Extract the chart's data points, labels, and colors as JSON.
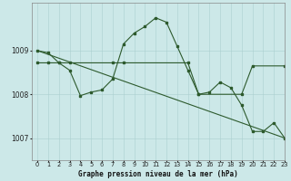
{
  "title": "Graphe pression niveau de la mer (hPa)",
  "background_color": "#cce8e8",
  "grid_color": "#aacfcf",
  "line_color": "#2d5a2d",
  "xlim": [
    -0.5,
    23
  ],
  "ylim": [
    1006.5,
    1010.1
  ],
  "yticks": [
    1007,
    1008,
    1009
  ],
  "xticks": [
    0,
    1,
    2,
    3,
    4,
    5,
    6,
    7,
    8,
    9,
    10,
    11,
    12,
    13,
    14,
    15,
    16,
    17,
    18,
    19,
    20,
    21,
    22,
    23
  ],
  "line1_x": [
    0,
    1,
    2,
    3,
    4,
    5,
    6,
    7,
    8,
    9,
    10,
    11,
    12,
    13,
    14,
    15,
    16,
    17,
    18,
    19,
    20,
    21,
    22,
    23
  ],
  "line1_y": [
    1009.0,
    1008.95,
    1008.72,
    1008.55,
    1007.97,
    1008.05,
    1008.1,
    1008.35,
    1009.15,
    1009.4,
    1009.55,
    1009.75,
    1009.65,
    1009.1,
    1008.55,
    1008.0,
    1008.05,
    1008.28,
    1008.15,
    1007.75,
    1007.15,
    1007.15,
    1007.35,
    1007.0
  ],
  "line2_x": [
    0,
    1,
    2,
    3,
    7,
    8,
    14,
    15,
    19,
    20,
    23
  ],
  "line2_y": [
    1008.72,
    1008.72,
    1008.72,
    1008.72,
    1008.72,
    1008.72,
    1008.72,
    1008.0,
    1008.0,
    1008.65,
    1008.65
  ],
  "line3_x": [
    0,
    23
  ],
  "line3_y": [
    1009.0,
    1007.0
  ],
  "xlabel_fontsize": 5.5,
  "ylabel_fontsize": 5.5,
  "tick_fontsize": 4.8,
  "linewidth": 0.8,
  "markersize": 2.0
}
